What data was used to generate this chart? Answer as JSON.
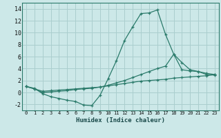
{
  "xlabel": "Humidex (Indice chaleur)",
  "xlim": [
    -0.5,
    23.5
  ],
  "ylim": [
    -3.0,
    15.0
  ],
  "xtick_vals": [
    0,
    1,
    2,
    3,
    4,
    5,
    6,
    7,
    8,
    9,
    10,
    11,
    12,
    13,
    14,
    15,
    16,
    17,
    18,
    19,
    20,
    21,
    22,
    23
  ],
  "ytick_vals": [
    -2,
    0,
    2,
    4,
    6,
    8,
    10,
    12,
    14
  ],
  "bg_color": "#cce8e8",
  "line_color": "#2a7a6a",
  "grid_color": "#aacece",
  "line1_x": [
    0,
    1,
    2,
    3,
    4,
    5,
    6,
    7,
    8,
    9,
    10,
    11,
    12,
    13,
    14,
    15,
    16,
    17,
    18,
    19,
    20,
    21,
    22,
    23
  ],
  "line1_y": [
    1.0,
    0.7,
    -0.2,
    -0.7,
    -1.0,
    -1.3,
    -1.5,
    -2.1,
    -2.2,
    -0.5,
    2.3,
    5.3,
    8.7,
    11.0,
    13.2,
    13.3,
    13.8,
    9.7,
    6.4,
    3.8,
    3.6,
    3.5,
    3.0,
    2.9
  ],
  "line2_x": [
    0,
    1,
    2,
    3,
    4,
    5,
    6,
    7,
    8,
    9,
    10,
    11,
    12,
    13,
    14,
    15,
    16,
    17,
    18,
    19,
    20,
    21,
    22,
    23
  ],
  "line2_y": [
    1.0,
    0.6,
    0.0,
    0.1,
    0.2,
    0.3,
    0.5,
    0.6,
    0.7,
    0.9,
    1.2,
    1.6,
    2.0,
    2.5,
    3.0,
    3.5,
    4.0,
    4.4,
    6.4,
    5.0,
    3.8,
    3.5,
    3.2,
    3.0
  ],
  "line3_x": [
    0,
    1,
    2,
    3,
    4,
    5,
    6,
    7,
    8,
    9,
    10,
    11,
    12,
    13,
    14,
    15,
    16,
    17,
    18,
    19,
    20,
    21,
    22,
    23
  ],
  "line3_y": [
    1.0,
    0.6,
    0.2,
    0.3,
    0.4,
    0.5,
    0.6,
    0.7,
    0.8,
    0.9,
    1.1,
    1.3,
    1.5,
    1.7,
    1.9,
    2.0,
    2.1,
    2.2,
    2.4,
    2.5,
    2.6,
    2.7,
    2.8,
    3.0
  ]
}
